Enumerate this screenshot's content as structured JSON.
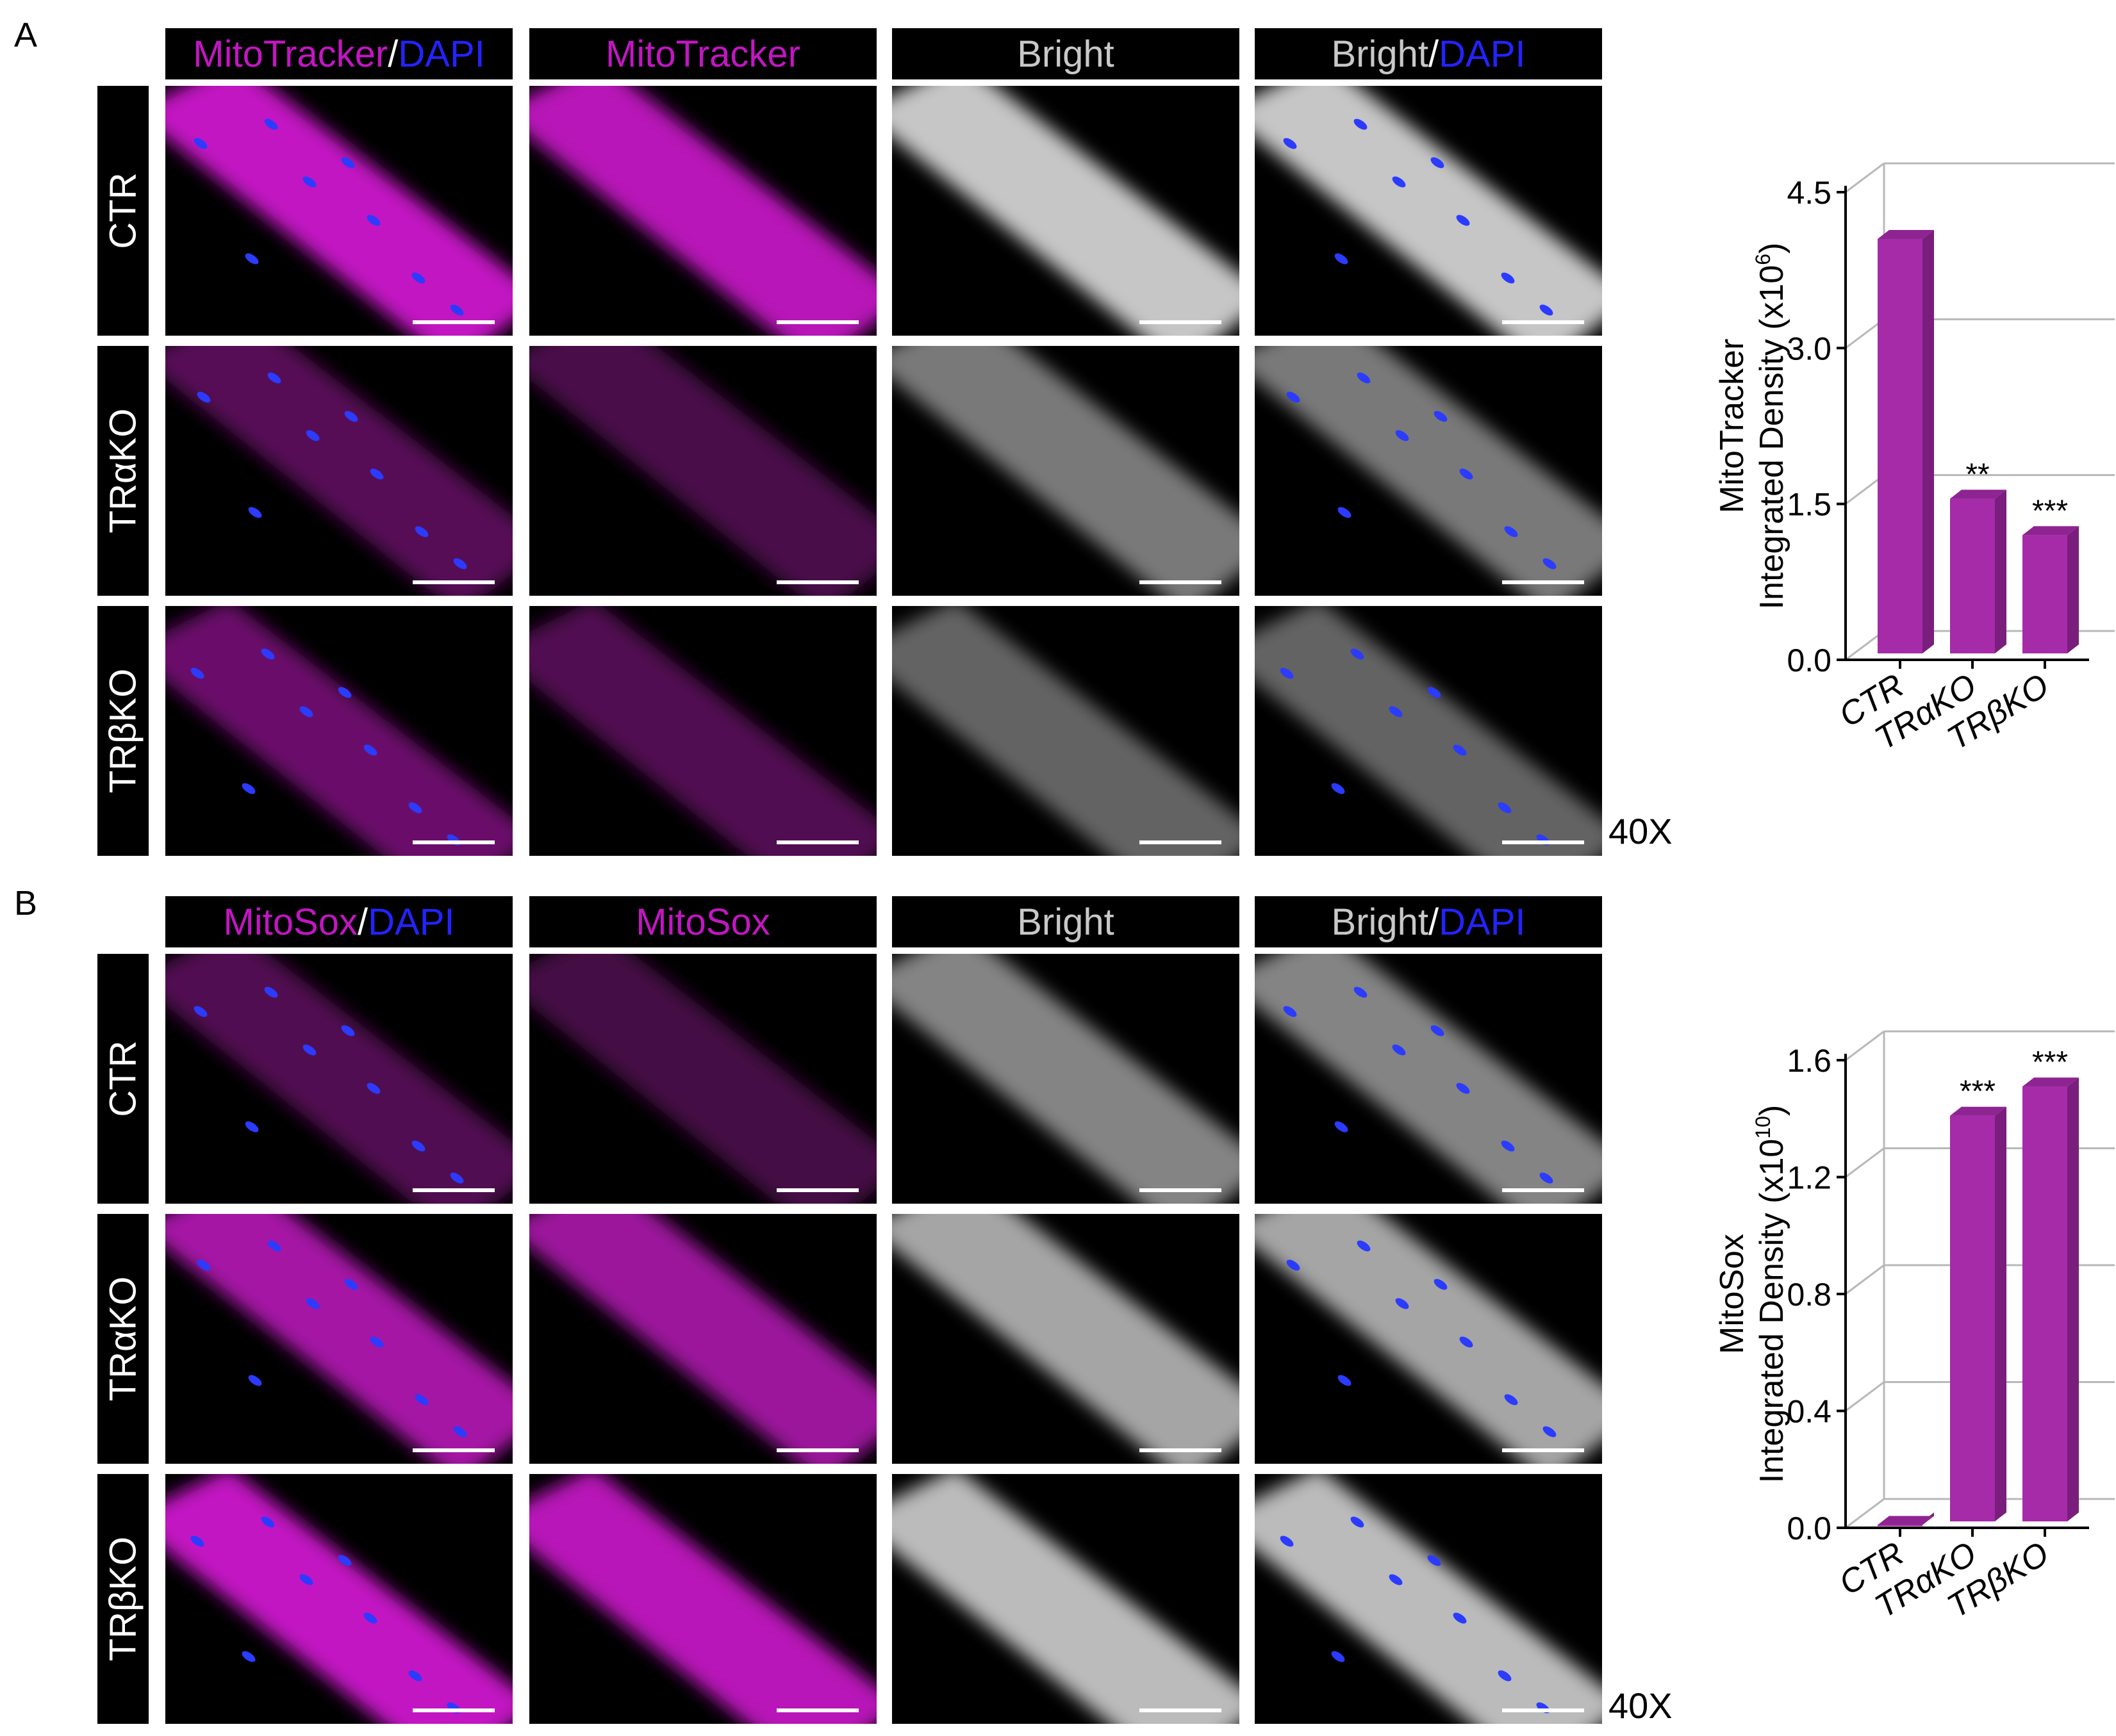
{
  "panels": [
    {
      "id": "A",
      "letter": "A",
      "columns": [
        {
          "parts": [
            {
              "text": "MitoTracker",
              "color": "magenta"
            },
            {
              "text": "/",
              "color": "white"
            },
            {
              "text": "DAPI",
              "color": "blue"
            }
          ]
        },
        {
          "parts": [
            {
              "text": "MitoTracker",
              "color": "magenta"
            }
          ]
        },
        {
          "parts": [
            {
              "text": "Bright",
              "color": "gray"
            }
          ]
        },
        {
          "parts": [
            {
              "text": "Bright",
              "color": "gray"
            },
            {
              "text": "/",
              "color": "white"
            },
            {
              "text": "DAPI",
              "color": "blue"
            }
          ]
        }
      ],
      "rows": [
        "CTR",
        "TRαKO",
        "TRβKO"
      ],
      "intensity": [
        [
          1.0,
          0.95,
          0.9,
          0.9
        ],
        [
          0.45,
          0.38,
          0.55,
          0.55
        ],
        [
          0.55,
          0.42,
          0.45,
          0.45
        ]
      ],
      "magnification": "40X"
    },
    {
      "id": "B",
      "letter": "B",
      "columns": [
        {
          "parts": [
            {
              "text": "MitoSox",
              "color": "magenta"
            },
            {
              "text": "/",
              "color": "white"
            },
            {
              "text": "DAPI",
              "color": "blue"
            }
          ]
        },
        {
          "parts": [
            {
              "text": "MitoSox",
              "color": "magenta"
            }
          ]
        },
        {
          "parts": [
            {
              "text": "Bright",
              "color": "gray"
            }
          ]
        },
        {
          "parts": [
            {
              "text": "Bright",
              "color": "gray"
            },
            {
              "text": "/",
              "color": "white"
            },
            {
              "text": "DAPI",
              "color": "blue"
            }
          ]
        }
      ],
      "rows": [
        "CTR",
        "TRαKO",
        "TRβKO"
      ],
      "intensity": [
        [
          0.42,
          0.35,
          0.6,
          0.6
        ],
        [
          0.85,
          0.8,
          0.75,
          0.75
        ],
        [
          1.0,
          0.95,
          0.85,
          0.85
        ]
      ],
      "magnification": "40X"
    }
  ],
  "chart_data": [
    {
      "type": "bar",
      "categories": [
        "CTR",
        "TRαKO",
        "TRβKO"
      ],
      "values": [
        4.05,
        1.55,
        1.2
      ],
      "significance": [
        "",
        "**",
        "***"
      ],
      "ylabel_line1": "MitoTracker",
      "ylabel_line2": "Integrated Density (x10",
      "ylabel_exp": "6",
      "ylabel_close": ")",
      "ylim": [
        0,
        4.5
      ],
      "yticks": [
        "0.0",
        "1.5",
        "3.0",
        "4.5"
      ],
      "ytick_values": [
        0,
        1.5,
        3.0,
        4.5
      ],
      "grid": true,
      "bar_color": "#a52ba8"
    },
    {
      "type": "bar",
      "categories": [
        "CTR",
        "TRαKO",
        "TRβKO"
      ],
      "values": [
        0.01,
        1.41,
        1.51
      ],
      "significance": [
        "",
        "***",
        "***"
      ],
      "ylabel_line1": "MitoSox",
      "ylabel_line2": "Integrated Density (x10",
      "ylabel_exp": "10",
      "ylabel_close": ")",
      "ylim": [
        0,
        1.6
      ],
      "yticks": [
        "0.0",
        "0.4",
        "0.8",
        "1.2",
        "1.6"
      ],
      "ytick_values": [
        0,
        0.4,
        0.8,
        1.2,
        1.6
      ],
      "grid": true,
      "bar_color": "#a52ba8"
    }
  ],
  "colors": {
    "magenta": "#c216c2",
    "blue": "#2323ff",
    "gray": "#c8c8c8",
    "white": "#ffffff"
  }
}
